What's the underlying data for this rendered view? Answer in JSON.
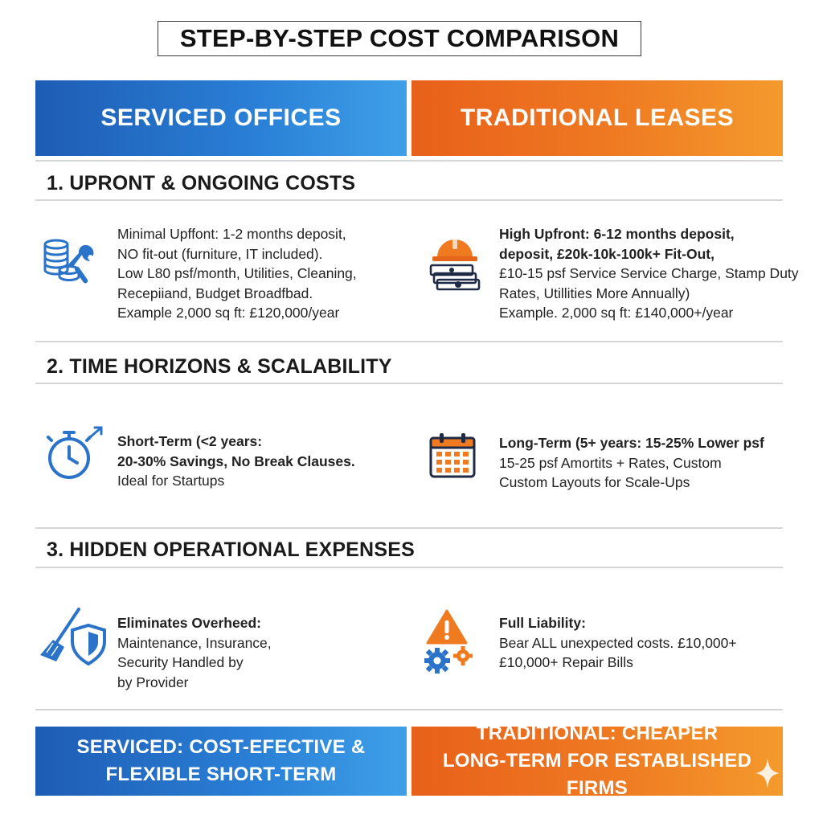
{
  "title": "STEP-BY-STEP COST COMPARISON",
  "columns": {
    "left": "SERVICED OFFICES",
    "right": "TRADITIONAL LEASES"
  },
  "sections": [
    {
      "heading": "1. UPRONT & ONGOING COSTS",
      "left": {
        "icon": "coins-wrench-icon",
        "lines": [
          "Minimal Upffont: 1-2 months deposit,",
          "NO fit-out (furniture, IT included).",
          "Low L80 psf/month, Utilities, Cleaning,",
          "Recepiiand, Budget Broadfbad.",
          "Example 2,000 sq ft: £120,000/year"
        ]
      },
      "right": {
        "icon": "hardhat-money-icon",
        "lines": [
          "High Upfront: 6-12 months deposit,",
          "deposit, £20k-10k-100k+ Fit-Out,",
          "£10-15 psf Service Service Charge, Stamp Duty",
          "Rates, Utillities More Annually)",
          "Example. 2,000 sq ft: £140,000+/year"
        ]
      }
    },
    {
      "heading": "2. TIME HORIZONS & SCALABILITY",
      "left": {
        "icon": "stopwatch-icon",
        "lines": [
          "Short-Term (<2 years:",
          "20-30% Savings, No Break Clauses.",
          "Ideal for Startups"
        ]
      },
      "right": {
        "icon": "calendar-icon",
        "lines": [
          "Long-Term (5+ years: 15-25% Lower psf",
          "15-25 psf Amortits + Rates, Custom",
          "Custom Layouts for Scale-Ups"
        ]
      }
    },
    {
      "heading": "3. HIDDEN OPERATIONAL EXPENSES",
      "left": {
        "icon": "broom-shield-icon",
        "lines": [
          "Eliminates Overheed:",
          "Maintenance, Insurance,",
          "Security Handled by",
          "by Provider"
        ]
      },
      "right": {
        "icon": "warning-gears-icon",
        "lines": [
          "Full Liability:",
          "Bear ALL unexpected costs. £10,000+",
          "£10,000+ Repair Bills"
        ]
      }
    }
  ],
  "footer": {
    "left": [
      "SERVICED: COST-EFECTIVE &",
      "FLEXIBLE SHORT-TERM"
    ],
    "right": [
      "TRADITIONAL: CHEAPER",
      "LONG-TERM FOR ESTABLISHED FIRMS"
    ]
  },
  "colors": {
    "blue": "#2a80d6",
    "orange": "#ef7a22"
  }
}
